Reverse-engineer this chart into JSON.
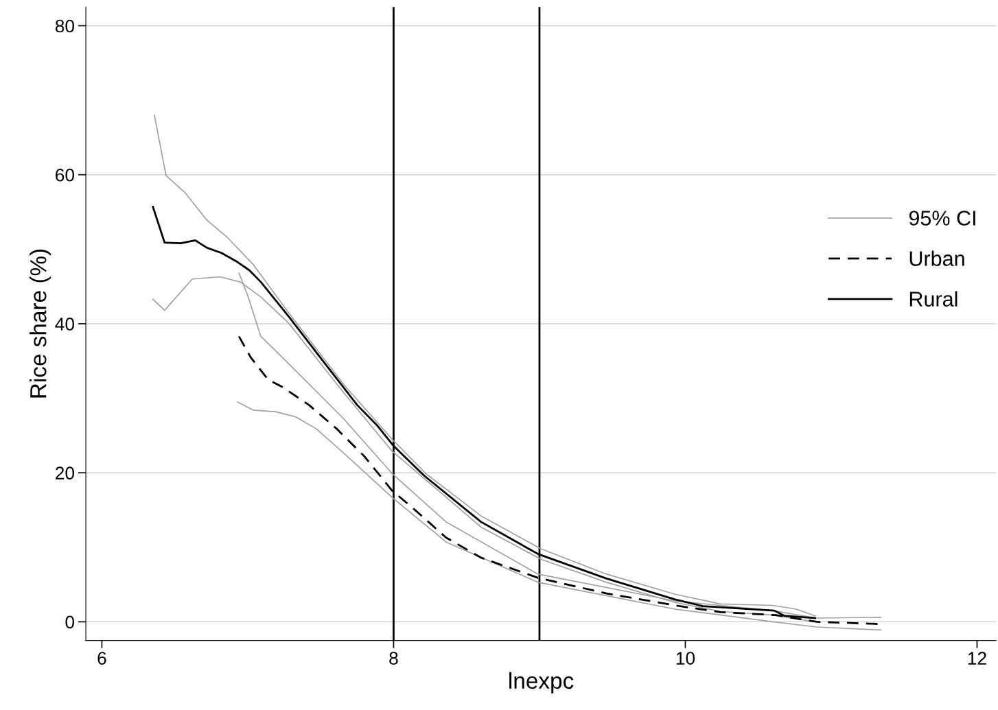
{
  "chart_data": {
    "type": "line",
    "xlabel": "lnexpc",
    "ylabel": "Rice share (%)",
    "xlim": [
      5.89,
      12.13
    ],
    "ylim": [
      -2.5,
      82.5
    ],
    "xticks": [
      6,
      8,
      10,
      12
    ],
    "yticks": [
      0,
      20,
      40,
      60,
      80
    ],
    "grid": "y",
    "legend": "right",
    "marker": "none",
    "ref_lines": [
      {
        "axis": "x",
        "value": 8,
        "color": "#000000"
      },
      {
        "axis": "x",
        "value": 9,
        "color": "#000000"
      }
    ],
    "series": [
      {
        "name": "95% CI",
        "color": "#a0a0a0",
        "line_style": "solid",
        "x": [
          6.36,
          6.44,
          6.57,
          6.72,
          6.86,
          7.04,
          7.28,
          7.66,
          7.99,
          8.22,
          8.6,
          9.01,
          9.46,
          9.93,
          10.24,
          10.6,
          10.76,
          10.89
        ],
        "values": [
          68.0,
          59.9,
          57.6,
          53.9,
          51.6,
          47.9,
          41.5,
          31.8,
          24.5,
          19.9,
          14.2,
          9.8,
          6.4,
          3.7,
          2.4,
          2.2,
          1.7,
          0.8
        ]
      },
      {
        "color": "#a0a0a0",
        "line_style": "solid",
        "x": [
          6.35,
          6.43,
          6.62,
          6.81,
          6.95,
          7.09,
          7.28,
          7.66,
          7.99,
          8.6,
          9.01,
          9.46,
          9.93,
          10.24,
          10.6,
          10.89
        ],
        "values": [
          43.3,
          41.8,
          46.0,
          46.3,
          45.6,
          43.6,
          40.1,
          30.7,
          22.9,
          12.7,
          8.4,
          5.3,
          2.6,
          1.4,
          0.9,
          0.0
        ]
      },
      {
        "color": "#a0a0a0",
        "line_style": "solid",
        "x": [
          6.94,
          7.0,
          7.09,
          7.19,
          7.37,
          7.66,
          7.99,
          8.36,
          8.99,
          9.93,
          10.6,
          10.9,
          11.34
        ],
        "values": [
          46.8,
          43.8,
          38.3,
          36.4,
          32.9,
          27.2,
          19.9,
          13.4,
          6.4,
          2.8,
          1.5,
          0.5,
          0.6
        ]
      },
      {
        "color": "#a0a0a0",
        "line_style": "solid",
        "x": [
          6.93,
          7.04,
          7.19,
          7.33,
          7.47,
          7.66,
          7.99,
          8.36,
          8.99,
          9.93,
          10.6,
          10.9,
          11.34
        ],
        "values": [
          29.5,
          28.4,
          28.2,
          27.5,
          25.9,
          22.6,
          16.7,
          10.7,
          5.3,
          1.7,
          0.0,
          -0.7,
          -1.1
        ]
      },
      {
        "name": "Urban",
        "color": "#000000",
        "line_style": "dashed",
        "x": [
          6.94,
          7.02,
          7.14,
          7.23,
          7.42,
          7.61,
          7.8,
          7.99,
          8.13,
          8.36,
          8.6,
          8.99,
          9.46,
          9.93,
          10.24,
          10.62,
          10.9,
          11.34
        ],
        "values": [
          38.3,
          35.5,
          32.5,
          31.6,
          29.1,
          25.9,
          22.2,
          17.6,
          15.3,
          11.3,
          8.6,
          5.9,
          3.8,
          2.2,
          1.3,
          0.9,
          0.0,
          -0.3
        ]
      },
      {
        "name": "Rural",
        "color": "#000000",
        "line_style": "solid",
        "x": [
          6.35,
          6.43,
          6.54,
          6.64,
          6.72,
          6.82,
          6.92,
          7.01,
          7.09,
          7.28,
          7.52,
          7.75,
          7.89,
          8.0,
          8.21,
          8.6,
          8.99,
          9.46,
          9.93,
          10.12,
          10.61,
          10.68,
          10.89
        ],
        "values": [
          55.7,
          50.9,
          50.8,
          51.2,
          50.2,
          49.5,
          48.4,
          47.2,
          45.6,
          41.0,
          34.9,
          29.1,
          26.3,
          23.6,
          19.6,
          13.4,
          9.1,
          5.8,
          3.0,
          2.1,
          1.5,
          0.8,
          0.5
        ]
      }
    ]
  }
}
